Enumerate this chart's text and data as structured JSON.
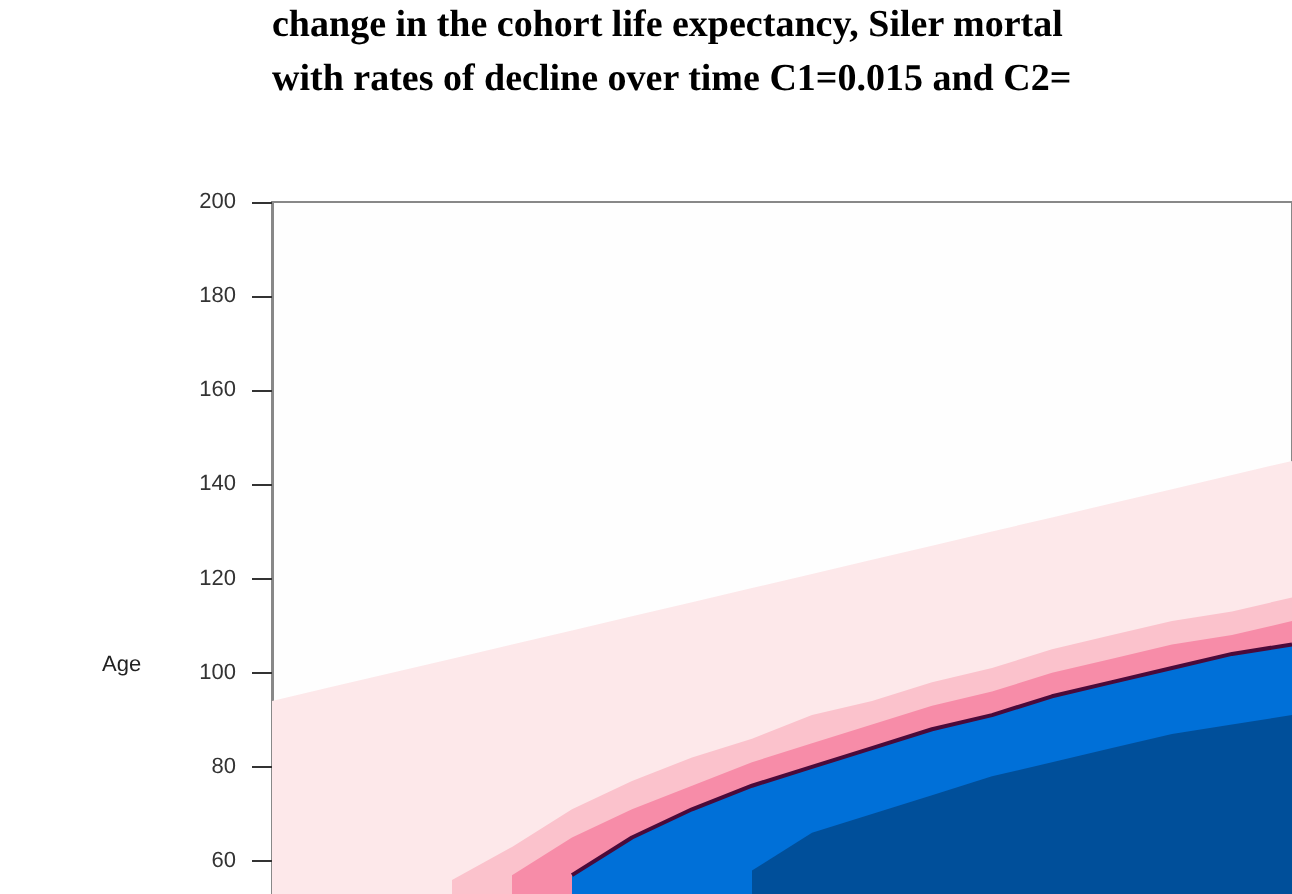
{
  "chart_data": {
    "type": "area",
    "title": "change in the cohort life expectancy, Siler mortal\nwith rates of decline over time C1=0.015 and C2=",
    "ylabel": "Age",
    "categories": [
      null,
      null,
      null,
      null,
      null,
      null,
      null,
      null,
      null,
      null,
      null,
      null,
      null,
      null,
      null,
      null,
      null,
      null
    ],
    "series": [
      {
        "color": "#fde8ea",
        "values": [
          94,
          97,
          100,
          103,
          106,
          109,
          112,
          115,
          118,
          121,
          124,
          127,
          130,
          133,
          136,
          139,
          142,
          145
        ]
      },
      {
        "color": "#fbc2cc",
        "values": [
          null,
          null,
          null,
          56,
          63,
          71,
          77,
          82,
          86,
          91,
          94,
          98,
          101,
          105,
          108,
          111,
          113,
          116
        ]
      },
      {
        "color": "#f78ca8",
        "values": [
          null,
          null,
          null,
          null,
          57,
          65,
          71,
          76,
          81,
          85,
          89,
          93,
          96,
          100,
          103,
          106,
          108,
          111
        ]
      },
      {
        "color": "#0070d8",
        "values": [
          null,
          null,
          null,
          null,
          null,
          57,
          65,
          71,
          76,
          80,
          84,
          88,
          91,
          95,
          98,
          101,
          104,
          106
        ]
      },
      {
        "type": "line",
        "color": "#4a0a3a",
        "values": [
          null,
          null,
          null,
          null,
          null,
          57,
          65,
          71,
          76,
          80,
          84,
          88,
          91,
          95,
          98,
          101,
          104,
          106
        ]
      },
      {
        "color": "#004f9a",
        "values": [
          null,
          null,
          null,
          null,
          null,
          null,
          null,
          null,
          58,
          66,
          70,
          74,
          78,
          81,
          84,
          87,
          89,
          91
        ]
      }
    ],
    "ylim": [
      53,
      200
    ],
    "yticks": [
      60,
      80,
      100,
      120,
      140,
      160,
      180,
      200
    ],
    "grid": false
  }
}
